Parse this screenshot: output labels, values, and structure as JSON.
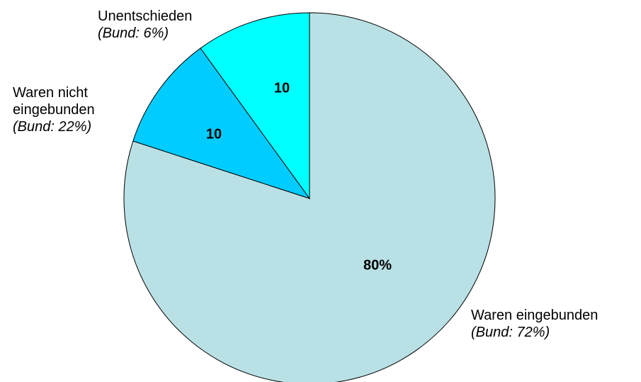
{
  "chart_data": {
    "type": "pie",
    "categories": [
      "Waren eingebunden",
      "Waren nicht eingebunden",
      "Unentschieden"
    ],
    "notes": [
      "(Bund: 72%)",
      "(Bund: 22%)",
      "(Bund: 6%)"
    ],
    "values": [
      80,
      10,
      10
    ],
    "value_labels": [
      "80%",
      "10",
      "10"
    ],
    "colors": [
      "#b9e1e5",
      "#00ccff",
      "#00ffff"
    ]
  }
}
